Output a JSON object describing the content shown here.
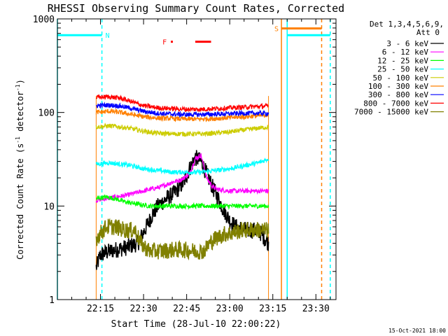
{
  "chart_data": {
    "type": "line",
    "title": "RHESSI Observing Summary Count Rates, Corrected",
    "xlabel": "Start Time (28-Jul-10 22:00:22)",
    "ylabel": "Corrected Count Rate (s",
    "ylabel_sup1": "-1",
    "ylabel_mid": " detector",
    "ylabel_sup2": "-1",
    "ylabel_end": ")",
    "timestamp": "15-Oct-2021 18:00",
    "y_scale": "log",
    "ylim": [
      1,
      1000
    ],
    "xlim_minutes": [
      0,
      97
    ],
    "x_tick_labels": [
      {
        "label": "22:15",
        "minute": 15
      },
      {
        "label": "22:30",
        "minute": 30
      },
      {
        "label": "22:45",
        "minute": 45
      },
      {
        "label": "23:00",
        "minute": 60
      },
      {
        "label": "23:15",
        "minute": 75
      },
      {
        "label": "23:30",
        "minute": 90
      }
    ],
    "y_tick_labels": [
      {
        "label": "1",
        "value": 1
      },
      {
        "label": "10",
        "value": 10
      },
      {
        "label": "100",
        "value": 100
      },
      {
        "label": "1000",
        "value": 1000
      }
    ],
    "legend_header": [
      "Det 1,3,4,5,6,9,",
      "Att 0"
    ],
    "series": [
      {
        "name": "3 - 6 keV",
        "color": "#000000",
        "points": [
          [
            13.5,
            2.2
          ],
          [
            15,
            3
          ],
          [
            17,
            3.2
          ],
          [
            20,
            3.4
          ],
          [
            22,
            3.5
          ],
          [
            24,
            3.6
          ],
          [
            28,
            4
          ],
          [
            31,
            6
          ],
          [
            33,
            8
          ],
          [
            35,
            10
          ],
          [
            38,
            12
          ],
          [
            41,
            14
          ],
          [
            44,
            18
          ],
          [
            46,
            25
          ],
          [
            48,
            33
          ],
          [
            50,
            30
          ],
          [
            52,
            22
          ],
          [
            54,
            16
          ],
          [
            56,
            12
          ],
          [
            58,
            9
          ],
          [
            60,
            7
          ],
          [
            62,
            6
          ],
          [
            66,
            5.5
          ],
          [
            70,
            5.5
          ],
          [
            73.5,
            4
          ]
        ]
      },
      {
        "name": "6 - 12 keV",
        "color": "#ff00ff",
        "points": [
          [
            13.5,
            11.5
          ],
          [
            17,
            12
          ],
          [
            20,
            12.5
          ],
          [
            24,
            13
          ],
          [
            28,
            14
          ],
          [
            32,
            15
          ],
          [
            36,
            16
          ],
          [
            40,
            18
          ],
          [
            43,
            19
          ],
          [
            46,
            22
          ],
          [
            48,
            32
          ],
          [
            50,
            35
          ],
          [
            52,
            20
          ],
          [
            54,
            16
          ],
          [
            56,
            15
          ],
          [
            60,
            14.5
          ],
          [
            65,
            14.5
          ],
          [
            70,
            14.5
          ],
          [
            73.5,
            14.5
          ]
        ]
      },
      {
        "name": "12 - 25 keV",
        "color": "#00ff00",
        "points": [
          [
            13.5,
            12
          ],
          [
            17,
            12.5
          ],
          [
            20,
            12
          ],
          [
            24,
            11
          ],
          [
            28,
            10.5
          ],
          [
            32,
            10
          ],
          [
            36,
            10
          ],
          [
            40,
            10
          ],
          [
            45,
            10
          ],
          [
            50,
            10
          ],
          [
            55,
            10
          ],
          [
            60,
            10
          ],
          [
            65,
            10
          ],
          [
            70,
            10
          ],
          [
            73.5,
            10
          ]
        ]
      },
      {
        "name": "25 - 50 keV",
        "color": "#00ffff",
        "points": [
          [
            13.5,
            28
          ],
          [
            18,
            29
          ],
          [
            22,
            28
          ],
          [
            26,
            27
          ],
          [
            30,
            25
          ],
          [
            35,
            24
          ],
          [
            40,
            23
          ],
          [
            45,
            23
          ],
          [
            50,
            23
          ],
          [
            55,
            24
          ],
          [
            60,
            25
          ],
          [
            65,
            27
          ],
          [
            70,
            29
          ],
          [
            73.5,
            32
          ]
        ]
      },
      {
        "name": "50 - 100 keV",
        "color": "#cccc00",
        "points": [
          [
            13.5,
            70
          ],
          [
            18,
            72
          ],
          [
            22,
            70
          ],
          [
            26,
            67
          ],
          [
            30,
            63
          ],
          [
            35,
            60
          ],
          [
            40,
            59
          ],
          [
            45,
            59
          ],
          [
            50,
            59
          ],
          [
            55,
            60
          ],
          [
            60,
            62
          ],
          [
            65,
            65
          ],
          [
            70,
            68
          ],
          [
            73.5,
            70
          ]
        ]
      },
      {
        "name": "100 - 300 keV",
        "color": "#ff8000",
        "points": [
          [
            13.5,
            100
          ],
          [
            18,
            103
          ],
          [
            22,
            100
          ],
          [
            26,
            95
          ],
          [
            30,
            90
          ],
          [
            35,
            87
          ],
          [
            40,
            86
          ],
          [
            45,
            85
          ],
          [
            50,
            85
          ],
          [
            55,
            86
          ],
          [
            60,
            88
          ],
          [
            65,
            90
          ],
          [
            70,
            92
          ],
          [
            73.5,
            94
          ]
        ]
      },
      {
        "name": "300 - 800 keV",
        "color": "#0000ff",
        "points": [
          [
            13.5,
            118
          ],
          [
            18,
            120
          ],
          [
            22,
            117
          ],
          [
            26,
            110
          ],
          [
            30,
            103
          ],
          [
            35,
            98
          ],
          [
            40,
            96
          ],
          [
            45,
            95
          ],
          [
            50,
            95
          ],
          [
            55,
            96
          ],
          [
            60,
            97
          ],
          [
            65,
            98
          ],
          [
            70,
            98
          ],
          [
            73.5,
            98
          ]
        ]
      },
      {
        "name": "800 - 7000 keV",
        "color": "#ff0000",
        "points": [
          [
            13.5,
            145
          ],
          [
            18,
            147
          ],
          [
            22,
            142
          ],
          [
            26,
            130
          ],
          [
            30,
            118
          ],
          [
            35,
            112
          ],
          [
            40,
            110
          ],
          [
            45,
            108
          ],
          [
            50,
            108
          ],
          [
            55,
            110
          ],
          [
            60,
            112
          ],
          [
            65,
            114
          ],
          [
            70,
            116
          ],
          [
            73.5,
            117
          ]
        ]
      },
      {
        "name": "7000 - 15000 keV",
        "color": "#808000",
        "points": [
          [
            13.5,
            4.5
          ],
          [
            17,
            6
          ],
          [
            20,
            6
          ],
          [
            24,
            5.5
          ],
          [
            27,
            5.5
          ],
          [
            29,
            4
          ],
          [
            32,
            3.3
          ],
          [
            36,
            3.3
          ],
          [
            40,
            3.4
          ],
          [
            44,
            3.4
          ],
          [
            48,
            3.3
          ],
          [
            51,
            3.3
          ],
          [
            53,
            4
          ],
          [
            55,
            4.5
          ],
          [
            58,
            5
          ],
          [
            61,
            5.2
          ],
          [
            64,
            5.5
          ],
          [
            68,
            5.6
          ],
          [
            73.5,
            5.5
          ]
        ]
      }
    ],
    "spacecraft_flags": [
      {
        "label": "N",
        "color": "#00ffff",
        "bars": [
          [
            0,
            15.5
          ],
          [
            80,
            95
          ]
        ],
        "bar_value": 670
      },
      {
        "label": "S",
        "color": "#ff8000",
        "bars": [
          [
            78,
            92
          ]
        ],
        "bar_value": 790
      },
      {
        "label": "F",
        "color": "#ff0000",
        "bars": [
          [
            39.5,
            40.2
          ],
          [
            48,
            53.5
          ]
        ],
        "bar_value": 570
      }
    ],
    "intervals": [
      {
        "type": "night_start",
        "color": "#00ffff",
        "minute": 0,
        "dashed": false
      },
      {
        "type": "night_end",
        "color": "#00ffff",
        "minute": 15.5,
        "dashed": true
      },
      {
        "type": "night_start",
        "color": "#00ffff",
        "minute": 80,
        "dashed": false
      },
      {
        "type": "night_end",
        "color": "#00ffff",
        "minute": 95,
        "dashed": true
      },
      {
        "type": "saa_start",
        "color": "#ff8000",
        "minute": 78,
        "dashed": false
      },
      {
        "type": "saa_end",
        "color": "#ff8000",
        "minute": 92,
        "dashed": true
      }
    ],
    "data_window_minutes": [
      13.5,
      73.5
    ],
    "data_window_color": "#ff8000"
  }
}
